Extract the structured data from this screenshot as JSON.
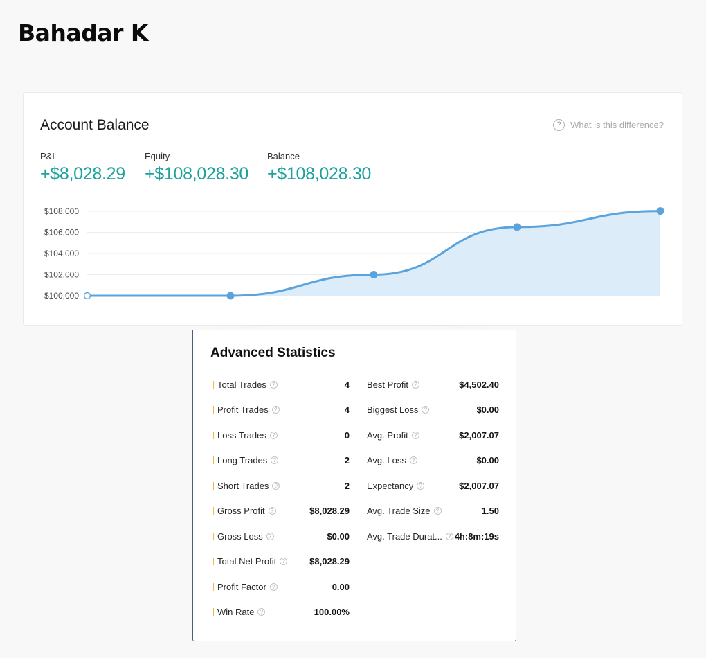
{
  "user": {
    "name": "Bahadar K"
  },
  "account_balance": {
    "title": "Account Balance",
    "help_text": "What is this difference?",
    "help_icon": "question-circle-icon",
    "metrics": [
      {
        "label": "P&L",
        "value": "+$8,028.29"
      },
      {
        "label": "Equity",
        "value": "+$108,028.30"
      },
      {
        "label": "Balance",
        "value": "+$108,028.30"
      }
    ],
    "accent_color": "#1ea39c"
  },
  "chart_data": {
    "type": "area",
    "y_tick_labels": [
      "$108,000",
      "$106,000",
      "$104,000",
      "$102,000",
      "$100,000"
    ],
    "y_ticks": [
      108000,
      106000,
      104000,
      102000,
      100000
    ],
    "ylim": [
      100000,
      108000
    ],
    "grid": true,
    "series": [
      {
        "values": [
          100000,
          100000,
          102000,
          106500,
          108028.3
        ]
      }
    ],
    "line_color": "#5aa3dd",
    "fill_color": "#d8eaf7"
  },
  "advanced_statistics": {
    "title": "Advanced Statistics",
    "left": [
      {
        "label": "Total Trades",
        "value": "4"
      },
      {
        "label": "Profit Trades",
        "value": "4"
      },
      {
        "label": "Loss Trades",
        "value": "0"
      },
      {
        "label": "Long Trades",
        "value": "2"
      },
      {
        "label": "Short Trades",
        "value": "2"
      },
      {
        "label": "Gross Profit",
        "value": "$8,028.29"
      },
      {
        "label": "Gross Loss",
        "value": "$0.00"
      },
      {
        "label": "Total Net Profit",
        "value": "$8,028.29"
      },
      {
        "label": "Profit Factor",
        "value": "0.00"
      },
      {
        "label": "Win Rate",
        "value": "100.00%"
      }
    ],
    "right": [
      {
        "label": "Best Profit",
        "value": "$4,502.40"
      },
      {
        "label": "Biggest Loss",
        "value": "$0.00"
      },
      {
        "label": "Avg. Profit",
        "value": "$2,007.07"
      },
      {
        "label": "Avg. Loss",
        "value": "$0.00"
      },
      {
        "label": "Expectancy",
        "value": "$2,007.07"
      },
      {
        "label": "Avg. Trade Size",
        "value": "1.50"
      },
      {
        "label": "Avg. Trade Durat...",
        "value": "4h:8m:19s"
      }
    ]
  }
}
